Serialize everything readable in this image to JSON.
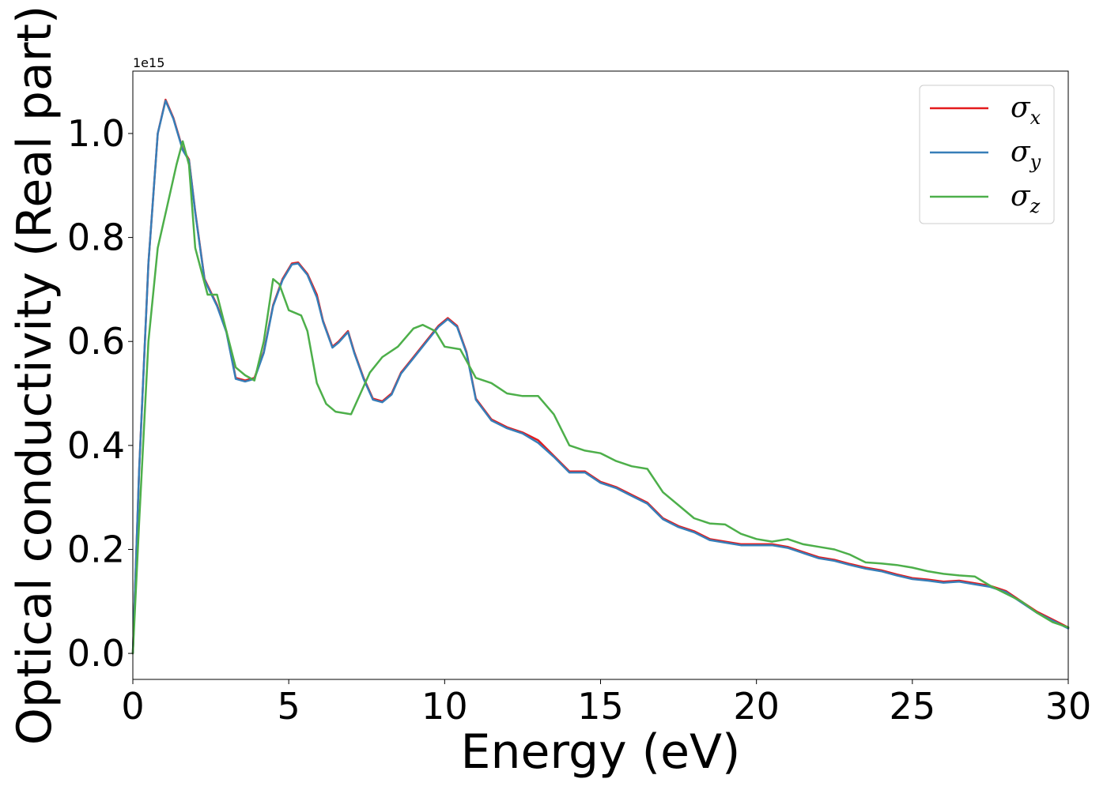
{
  "chart_data": {
    "type": "line",
    "xlabel": "Energy (eV)",
    "ylabel": "Optical conductivity (Real part)",
    "y_offset_label": "1e15",
    "xlim": [
      0,
      30
    ],
    "ylim": [
      -0.05,
      1.12
    ],
    "x_ticks": [
      0,
      5,
      10,
      15,
      20,
      25,
      30
    ],
    "x_tick_labels": [
      "0",
      "5",
      "10",
      "15",
      "20",
      "25",
      "30"
    ],
    "y_ticks": [
      0.0,
      0.2,
      0.4,
      0.6,
      0.8,
      1.0
    ],
    "y_tick_labels": [
      "0.0",
      "0.2",
      "0.4",
      "0.6",
      "0.8",
      "1.0"
    ],
    "grid": false,
    "legend_position": "top-right",
    "series": [
      {
        "name": "σx",
        "symbol": "σ",
        "subscript": "x",
        "color": "#e41a1c",
        "x": [
          0,
          0.2,
          0.5,
          0.8,
          1.05,
          1.3,
          1.6,
          1.8,
          2.0,
          2.3,
          2.7,
          3.0,
          3.3,
          3.6,
          3.9,
          4.2,
          4.5,
          4.8,
          5.1,
          5.3,
          5.6,
          5.9,
          6.1,
          6.4,
          6.6,
          6.9,
          7.1,
          7.4,
          7.7,
          8.0,
          8.3,
          8.6,
          9.0,
          9.4,
          9.8,
          10.1,
          10.4,
          10.7,
          11.0,
          11.5,
          12.0,
          12.5,
          13.0,
          13.5,
          14.0,
          14.5,
          15.0,
          15.5,
          16.0,
          16.5,
          17.0,
          17.5,
          18.0,
          18.5,
          19.0,
          19.5,
          20.0,
          20.5,
          21.0,
          21.5,
          22.0,
          22.5,
          23.0,
          23.5,
          24.0,
          24.5,
          25.0,
          25.5,
          26.0,
          26.5,
          27.0,
          27.5,
          28.0,
          28.5,
          29.0,
          29.5,
          30.0
        ],
        "y": [
          0.0,
          0.35,
          0.75,
          1.0,
          1.065,
          1.03,
          0.97,
          0.95,
          0.85,
          0.72,
          0.67,
          0.62,
          0.53,
          0.525,
          0.53,
          0.58,
          0.67,
          0.72,
          0.75,
          0.752,
          0.73,
          0.69,
          0.64,
          0.59,
          0.6,
          0.62,
          0.58,
          0.53,
          0.49,
          0.485,
          0.5,
          0.54,
          0.57,
          0.6,
          0.63,
          0.645,
          0.63,
          0.58,
          0.49,
          0.45,
          0.435,
          0.425,
          0.41,
          0.38,
          0.35,
          0.35,
          0.33,
          0.32,
          0.305,
          0.29,
          0.26,
          0.245,
          0.235,
          0.22,
          0.215,
          0.21,
          0.21,
          0.21,
          0.205,
          0.195,
          0.185,
          0.18,
          0.172,
          0.165,
          0.16,
          0.152,
          0.145,
          0.142,
          0.138,
          0.14,
          0.135,
          0.13,
          0.12,
          0.1,
          0.08,
          0.065,
          0.05
        ]
      },
      {
        "name": "σy",
        "symbol": "σ",
        "subscript": "y",
        "color": "#377eb8",
        "x": [
          0,
          0.2,
          0.5,
          0.8,
          1.05,
          1.3,
          1.6,
          1.8,
          2.0,
          2.3,
          2.7,
          3.0,
          3.3,
          3.6,
          3.9,
          4.2,
          4.5,
          4.8,
          5.1,
          5.3,
          5.6,
          5.9,
          6.1,
          6.4,
          6.6,
          6.9,
          7.1,
          7.4,
          7.7,
          8.0,
          8.3,
          8.6,
          9.0,
          9.4,
          9.8,
          10.1,
          10.4,
          10.7,
          11.0,
          11.5,
          12.0,
          12.5,
          13.0,
          13.5,
          14.0,
          14.5,
          15.0,
          15.5,
          16.0,
          16.5,
          17.0,
          17.5,
          18.0,
          18.5,
          19.0,
          19.5,
          20.0,
          20.5,
          21.0,
          21.5,
          22.0,
          22.5,
          23.0,
          23.5,
          24.0,
          24.5,
          25.0,
          25.5,
          26.0,
          26.5,
          27.0,
          27.5,
          28.0,
          28.5,
          29.0,
          29.5,
          30.0
        ],
        "y": [
          0.0,
          0.35,
          0.75,
          1.0,
          1.063,
          1.028,
          0.968,
          0.948,
          0.848,
          0.718,
          0.668,
          0.618,
          0.528,
          0.523,
          0.528,
          0.578,
          0.668,
          0.718,
          0.748,
          0.75,
          0.728,
          0.685,
          0.638,
          0.588,
          0.598,
          0.618,
          0.578,
          0.528,
          0.488,
          0.483,
          0.498,
          0.538,
          0.568,
          0.598,
          0.628,
          0.643,
          0.628,
          0.578,
          0.488,
          0.448,
          0.433,
          0.423,
          0.405,
          0.378,
          0.348,
          0.348,
          0.328,
          0.318,
          0.303,
          0.288,
          0.258,
          0.243,
          0.233,
          0.218,
          0.213,
          0.208,
          0.208,
          0.208,
          0.203,
          0.193,
          0.183,
          0.178,
          0.17,
          0.163,
          0.158,
          0.15,
          0.143,
          0.14,
          0.136,
          0.138,
          0.133,
          0.128,
          0.118,
          0.098,
          0.078,
          0.063,
          0.048
        ]
      },
      {
        "name": "σz",
        "symbol": "σ",
        "subscript": "z",
        "color": "#4daf4a",
        "x": [
          0,
          0.2,
          0.5,
          0.8,
          1.1,
          1.4,
          1.6,
          1.8,
          2.0,
          2.4,
          2.7,
          3.0,
          3.3,
          3.6,
          3.9,
          4.2,
          4.5,
          4.7,
          5.0,
          5.4,
          5.6,
          5.9,
          6.2,
          6.5,
          7.0,
          7.3,
          7.6,
          8.0,
          8.5,
          9.0,
          9.3,
          9.7,
          10.0,
          10.5,
          11.0,
          11.5,
          12.0,
          12.5,
          13.0,
          13.5,
          14.0,
          14.5,
          15.0,
          15.5,
          16.0,
          16.5,
          17.0,
          17.5,
          18.0,
          18.5,
          19.0,
          19.5,
          20.0,
          20.5,
          21.0,
          21.5,
          22.0,
          22.5,
          23.0,
          23.5,
          24.0,
          24.5,
          25.0,
          25.5,
          26.0,
          26.5,
          27.0,
          27.5,
          28.0,
          28.5,
          29.0,
          29.5,
          30.0
        ],
        "y": [
          0.0,
          0.25,
          0.6,
          0.78,
          0.86,
          0.94,
          0.985,
          0.94,
          0.78,
          0.69,
          0.69,
          0.62,
          0.55,
          0.535,
          0.525,
          0.6,
          0.72,
          0.71,
          0.66,
          0.65,
          0.62,
          0.52,
          0.48,
          0.465,
          0.46,
          0.5,
          0.54,
          0.57,
          0.59,
          0.625,
          0.632,
          0.62,
          0.59,
          0.585,
          0.53,
          0.52,
          0.5,
          0.495,
          0.495,
          0.46,
          0.4,
          0.39,
          0.385,
          0.37,
          0.36,
          0.355,
          0.31,
          0.285,
          0.26,
          0.25,
          0.248,
          0.23,
          0.22,
          0.215,
          0.22,
          0.21,
          0.205,
          0.2,
          0.19,
          0.175,
          0.173,
          0.17,
          0.165,
          0.158,
          0.153,
          0.15,
          0.148,
          0.13,
          0.115,
          0.1,
          0.078,
          0.06,
          0.05
        ]
      }
    ]
  }
}
